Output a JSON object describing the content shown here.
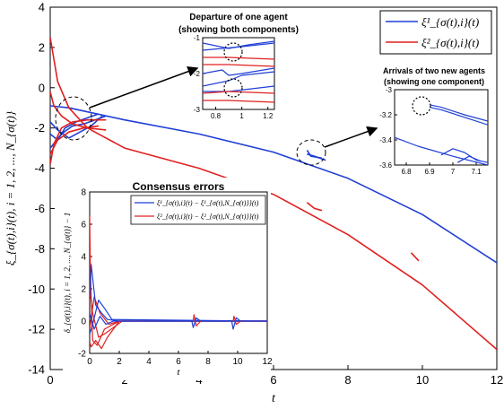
{
  "colors": {
    "blue": "#1f3fd6",
    "red": "#e02020",
    "axis": "#000000"
  },
  "chart_data": [
    {
      "id": "main",
      "type": "line",
      "xlabel": "t",
      "ylabel": "ξ_{σ(t),i}(t), i = 1, 2, ..., N_{σ(t)}",
      "xlim": [
        0,
        12
      ],
      "ylim": [
        -14,
        4
      ],
      "xticks": [
        0,
        2,
        4,
        6,
        8,
        10,
        12
      ],
      "yticks": [
        -14,
        -12,
        -10,
        -8,
        -6,
        -4,
        -2,
        0,
        2,
        4
      ],
      "legend_position": "top-right",
      "legend": [
        {
          "label": "ξ¹_{σ(t),i}(t)",
          "color": "blue"
        },
        {
          "label": "ξ²_{σ(t),i}(t)",
          "color": "red"
        }
      ],
      "series": [
        {
          "color": "blue",
          "x": [
            0,
            0.5,
            1,
            2,
            4,
            6,
            8,
            10,
            12
          ],
          "y": [
            -0.9,
            -1.0,
            -1.2,
            -1.6,
            -2.3,
            -3.2,
            -4.5,
            -6.3,
            -8.7
          ]
        },
        {
          "color": "blue",
          "x": [
            0,
            0.2,
            0.4,
            0.7,
            1.0,
            1.3
          ],
          "y": [
            -2.3,
            -2.6,
            -2.0,
            -1.7,
            -1.5,
            -1.3
          ]
        },
        {
          "color": "blue",
          "x": [
            0,
            0.2,
            0.5,
            0.8,
            1.1,
            1.4
          ],
          "y": [
            -1.7,
            -2.1,
            -2.5,
            -2.2,
            -1.9,
            -1.4
          ]
        },
        {
          "color": "blue",
          "x": [
            0,
            0.3,
            0.6,
            0.9,
            1.2,
            1.5
          ],
          "y": [
            -3.0,
            -2.3,
            -1.9,
            -1.8,
            -1.6,
            -1.4
          ]
        },
        {
          "color": "blue",
          "x": [
            6.9,
            7.1,
            7.4
          ],
          "y": [
            -3.3,
            -3.4,
            -3.6
          ]
        },
        {
          "color": "blue",
          "x": [
            6.9,
            7.0,
            7.3
          ],
          "y": [
            -3.1,
            -3.4,
            -3.5
          ]
        },
        {
          "color": "red",
          "x": [
            0,
            0.2,
            0.5,
            1,
            2,
            4,
            6,
            8,
            10,
            12
          ],
          "y": [
            2.5,
            0.3,
            -1.0,
            -2.0,
            -3.0,
            -4.0,
            -5.3,
            -7.3,
            -9.8,
            -13.0
          ]
        },
        {
          "color": "red",
          "x": [
            0,
            0.1,
            0.3,
            0.6,
            1.0,
            1.5
          ],
          "y": [
            -3.8,
            -2.8,
            -2.0,
            -1.7,
            -1.6,
            -1.6
          ]
        },
        {
          "color": "red",
          "x": [
            0,
            0.1,
            0.3,
            0.6,
            1.0,
            1.5
          ],
          "y": [
            -0.2,
            -0.9,
            -1.4,
            -1.8,
            -2.0,
            -2.1
          ]
        },
        {
          "color": "red",
          "x": [
            0,
            0.2,
            0.5,
            0.9,
            1.3
          ],
          "y": [
            -3.3,
            -2.6,
            -2.2,
            -2.0,
            -1.9
          ]
        },
        {
          "color": "red",
          "x": [
            6.9,
            7.1,
            7.3
          ],
          "y": [
            -5.7,
            -6.0,
            -6.1
          ]
        },
        {
          "color": "red",
          "x": [
            9.7,
            9.9
          ],
          "y": [
            -8.2,
            -8.6
          ]
        }
      ],
      "annotations": [
        {
          "text": "Departure of one agent",
          "sub": "(showing both components)"
        },
        {
          "text": "Arrivals of two new agents",
          "sub": "(showing one component)"
        }
      ]
    },
    {
      "id": "inset_departure",
      "type": "line",
      "xlim": [
        0.7,
        1.25
      ],
      "ylim": [
        -3,
        -1
      ],
      "xticks": [
        0.8,
        1,
        1.2
      ],
      "yticks": [
        -3,
        -2,
        -1
      ],
      "series": [
        {
          "color": "blue",
          "x": [
            0.7,
            0.85,
            0.9,
            1.0,
            1.25
          ],
          "y": [
            -2.0,
            -1.9,
            -2.05,
            -2.0,
            -1.85
          ]
        },
        {
          "color": "blue",
          "x": [
            0.7,
            0.9,
            1.0,
            1.25
          ],
          "y": [
            -2.35,
            -2.2,
            -2.05,
            -1.95
          ]
        },
        {
          "color": "blue",
          "x": [
            0.7,
            0.9,
            1.25
          ],
          "y": [
            -2.5,
            -2.5,
            -2.35
          ]
        },
        {
          "color": "blue",
          "x": [
            0.7,
            0.9,
            1.05,
            1.25
          ],
          "y": [
            -1.15,
            -1.3,
            -1.2,
            -1.1
          ]
        },
        {
          "color": "blue",
          "x": [
            0.7,
            1.0,
            1.25
          ],
          "y": [
            -1.35,
            -1.25,
            -1.15
          ]
        },
        {
          "color": "red",
          "x": [
            0.7,
            0.9,
            1.25
          ],
          "y": [
            -1.55,
            -1.55,
            -1.6
          ]
        },
        {
          "color": "red",
          "x": [
            0.7,
            0.9,
            1.25
          ],
          "y": [
            -1.75,
            -1.75,
            -1.8
          ]
        },
        {
          "color": "red",
          "x": [
            0.7,
            0.9,
            1.25
          ],
          "y": [
            -2.55,
            -2.5,
            -2.55
          ]
        },
        {
          "color": "red",
          "x": [
            0.7,
            0.9,
            1.25
          ],
          "y": [
            -2.75,
            -2.75,
            -2.8
          ]
        }
      ]
    },
    {
      "id": "inset_arrivals",
      "type": "line",
      "xlim": [
        6.75,
        7.15
      ],
      "ylim": [
        -3.6,
        -3.0
      ],
      "xticks": [
        6.8,
        6.9,
        7,
        7.1
      ],
      "yticks": [
        -3.6,
        -3.4,
        -3.2,
        -3
      ],
      "series": [
        {
          "color": "blue",
          "x": [
            6.75,
            6.85,
            7.0,
            7.15
          ],
          "y": [
            -3.38,
            -3.45,
            -3.53,
            -3.6
          ]
        },
        {
          "color": "blue",
          "x": [
            6.9,
            6.95,
            7.05,
            7.15
          ],
          "y": [
            -3.12,
            -3.14,
            -3.2,
            -3.25
          ]
        },
        {
          "color": "blue",
          "x": [
            6.9,
            6.95,
            7.05,
            7.15
          ],
          "y": [
            -3.14,
            -3.16,
            -3.22,
            -3.28
          ]
        },
        {
          "color": "blue",
          "x": [
            6.95,
            7.0,
            7.05,
            7.1,
            7.15
          ],
          "y": [
            -3.52,
            -3.47,
            -3.5,
            -3.56,
            -3.58
          ]
        },
        {
          "color": "blue",
          "x": [
            7.02,
            7.07,
            7.12
          ],
          "y": [
            -3.58,
            -3.53,
            -3.57
          ]
        }
      ]
    },
    {
      "id": "inset_errors",
      "type": "line",
      "title": "Consensus errors",
      "xlabel": "t",
      "ylabel": "δ_{σ(t),i}(t), i = 1, 2, ..., N_{σ(t)} − 1",
      "xlim": [
        0,
        12
      ],
      "ylim": [
        -2,
        8
      ],
      "xticks": [
        0,
        2,
        4,
        6,
        8,
        10,
        12
      ],
      "yticks": [
        -2,
        0,
        2,
        4,
        6,
        8
      ],
      "legend_position": "top-right",
      "legend": [
        {
          "label": "ξ¹_{σ(t),i}(t) − ξ¹_{σ(t),N_{σ(t)}}(t)",
          "color": "blue"
        },
        {
          "label": "ξ²_{σ(t),i}(t) − ξ²_{σ(t),N_{σ(t)}}(t)",
          "color": "red"
        }
      ],
      "series": [
        {
          "color": "red",
          "x": [
            0,
            0.05,
            0.2,
            0.5,
            1.0,
            2.0,
            12
          ],
          "y": [
            6.5,
            3.0,
            -1.2,
            -1.5,
            -0.5,
            0,
            0
          ]
        },
        {
          "color": "red",
          "x": [
            0,
            0.1,
            0.4,
            0.8,
            1.2,
            2.0,
            12
          ],
          "y": [
            -1.3,
            -1.6,
            -1.2,
            -1.7,
            -1.0,
            0,
            0
          ]
        },
        {
          "color": "red",
          "x": [
            0,
            0.2,
            0.6,
            1.0,
            1.6,
            2.2,
            12
          ],
          "y": [
            2.0,
            0.5,
            -1.0,
            -0.8,
            -0.4,
            0,
            0
          ]
        },
        {
          "color": "red",
          "x": [
            0,
            0.3,
            0.7,
            1.3,
            2.0,
            12
          ],
          "y": [
            -0.5,
            1.5,
            0.5,
            -0.2,
            0,
            0
          ]
        },
        {
          "color": "blue",
          "x": [
            0,
            0.1,
            0.4,
            0.8,
            1.2,
            2.0,
            12
          ],
          "y": [
            1.5,
            3.5,
            1.0,
            0.5,
            0.1,
            0,
            0
          ]
        },
        {
          "color": "blue",
          "x": [
            0,
            0.2,
            0.6,
            1.0,
            1.5,
            12
          ],
          "y": [
            -0.8,
            -0.2,
            1.3,
            0.8,
            0.1,
            0
          ]
        },
        {
          "color": "blue",
          "x": [
            0,
            0.3,
            0.7,
            1.1,
            1.6,
            12
          ],
          "y": [
            0.5,
            -0.5,
            0.3,
            -0.2,
            0,
            0
          ]
        },
        {
          "color": "blue",
          "x": [
            6.9,
            7.0,
            7.2,
            7.5
          ],
          "y": [
            0,
            -0.4,
            0.2,
            0
          ]
        },
        {
          "color": "red",
          "x": [
            7.0,
            7.05,
            7.2,
            7.5
          ],
          "y": [
            0,
            0.4,
            -0.3,
            0
          ]
        },
        {
          "color": "blue",
          "x": [
            9.6,
            9.7,
            9.9,
            10.2
          ],
          "y": [
            0,
            -0.5,
            0.2,
            0
          ]
        },
        {
          "color": "red",
          "x": [
            9.7,
            9.75,
            9.9,
            10.2
          ],
          "y": [
            0,
            0.3,
            -0.2,
            0
          ]
        }
      ]
    }
  ]
}
